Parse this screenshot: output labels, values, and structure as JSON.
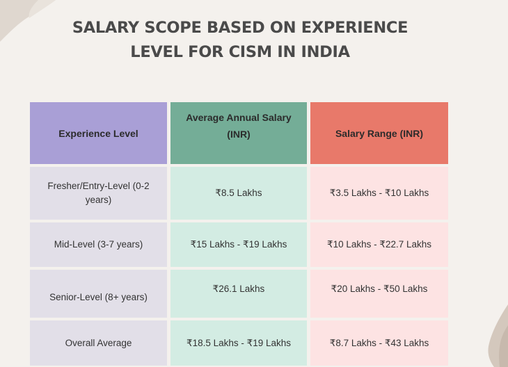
{
  "title": "SALARY SCOPE BASED ON EXPERIENCE LEVEL FOR CISM IN INDIA",
  "table": {
    "headers": [
      "Experience Level",
      "Average Annual Salary (INR)",
      "Salary Range (INR)"
    ],
    "rows": [
      [
        "Fresher/Entry-Level (0-2 years)",
        "₹8.5 Lakhs",
        "₹3.5 Lakhs - ₹10 Lakhs"
      ],
      [
        "Mid-Level (3-7 years)",
        "₹15 Lakhs - ₹19 Lakhs",
        "₹10 Lakhs - ₹22.7 Lakhs"
      ],
      [
        "Senior-Level (8+ years)",
        "₹26.1 Lakhs",
        "₹20 Lakhs - ₹50 Lakhs"
      ],
      [
        "Overall Average",
        "₹18.5 Lakhs - ₹19 Lakhs",
        "₹8.7 Lakhs - ₹43 Lakhs"
      ]
    ]
  },
  "colors": {
    "header_col1": "#a99fd6",
    "header_col2": "#74ad97",
    "header_col3": "#e8796a",
    "body_col1": "#e2dfe8",
    "body_col2": "#d3ece3",
    "body_col3": "#fde3e3"
  }
}
